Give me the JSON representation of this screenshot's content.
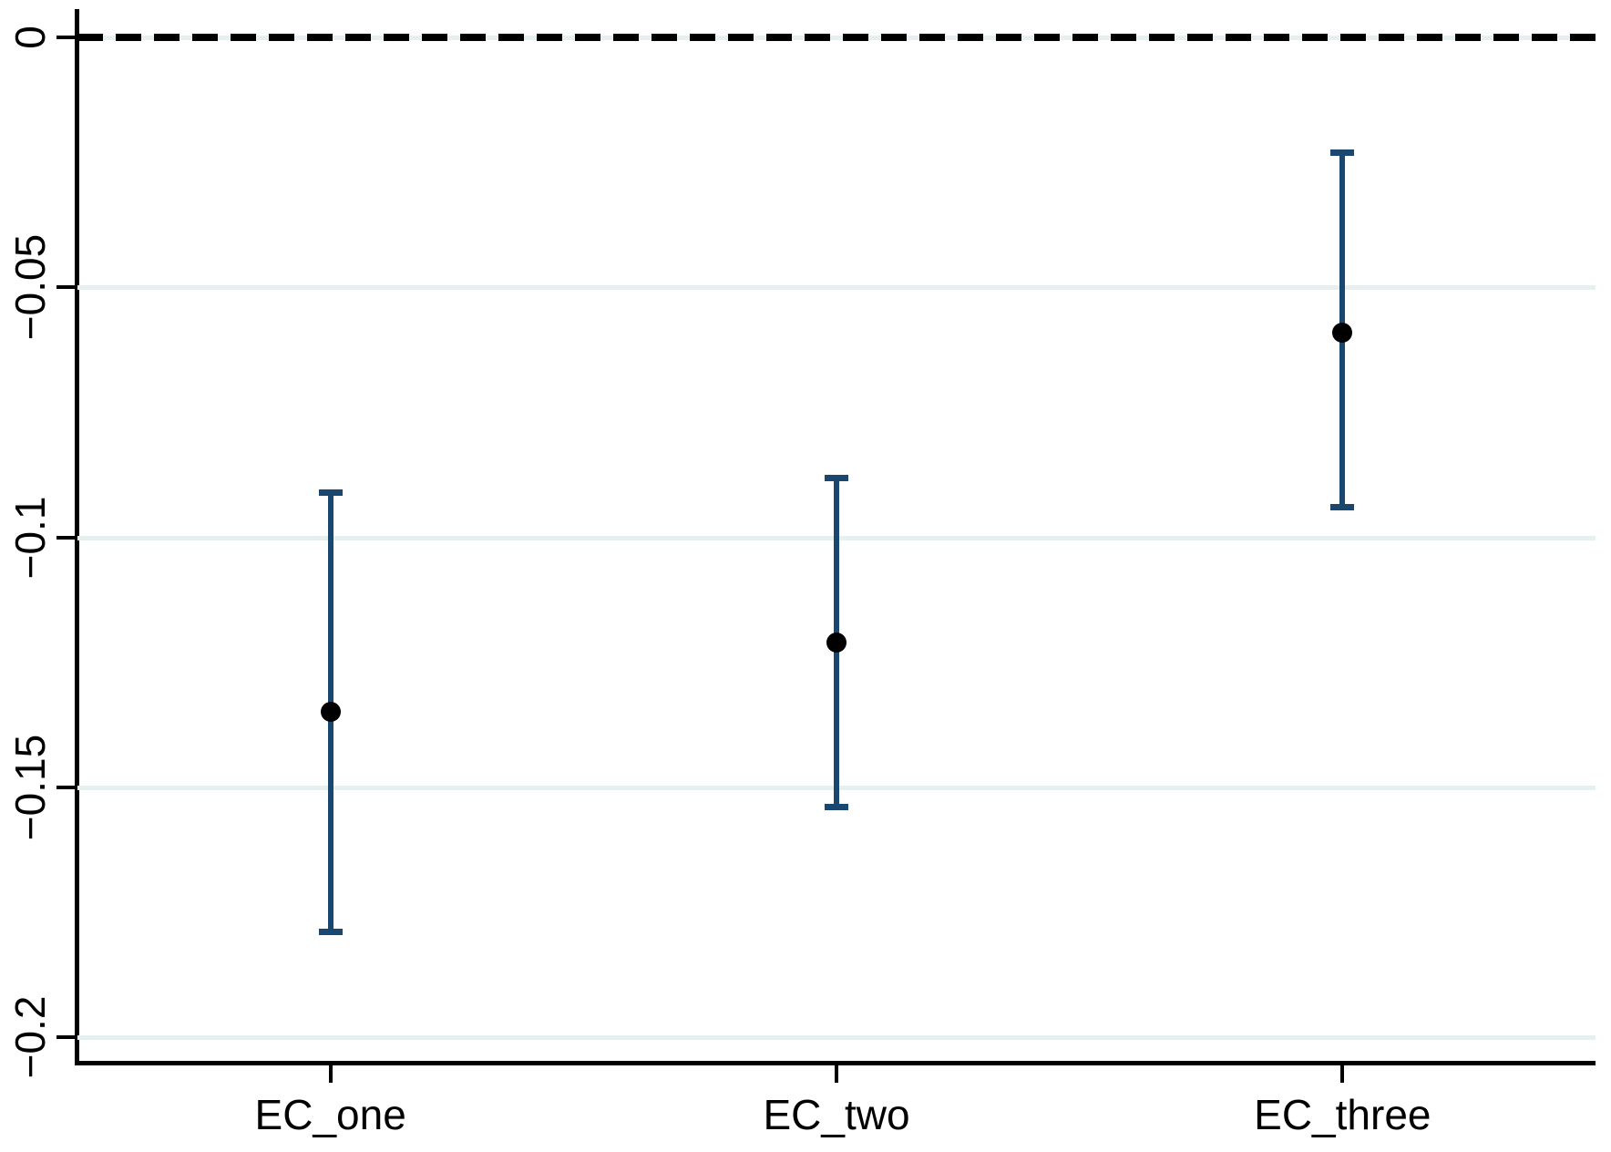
{
  "figure": {
    "background": "#ffffff"
  },
  "chart_data": {
    "type": "scatter",
    "subtype": "coefficient_plot_with_error_bars",
    "title": "",
    "xlabel": "",
    "ylabel": "",
    "categories": [
      "EC_one",
      "EC_two",
      "EC_three"
    ],
    "series": [
      {
        "name": "point_estimate_with_confidence_interval",
        "estimates": [
          -0.135,
          -0.121,
          -0.059
        ],
        "ci_low": [
          -0.179,
          -0.154,
          -0.094
        ],
        "ci_high": [
          -0.091,
          -0.088,
          -0.023
        ]
      }
    ],
    "ylim": [
      -0.2051,
      0.0057
    ],
    "yticks": [
      0,
      -0.05,
      -0.1,
      -0.15,
      -0.2
    ],
    "ytick_labels": [
      "0",
      "−0.05",
      "−0.1",
      "−0.15",
      "−0.2"
    ],
    "reference_line": {
      "value": 0,
      "style": "dashed",
      "label": ""
    },
    "grid": "horizontal",
    "legend": false,
    "colors": {
      "whisker": "#1a476f",
      "marker": "#000000",
      "gridline": "#e6f0f1",
      "axis": "#000000",
      "reference_line": "#000000"
    }
  }
}
